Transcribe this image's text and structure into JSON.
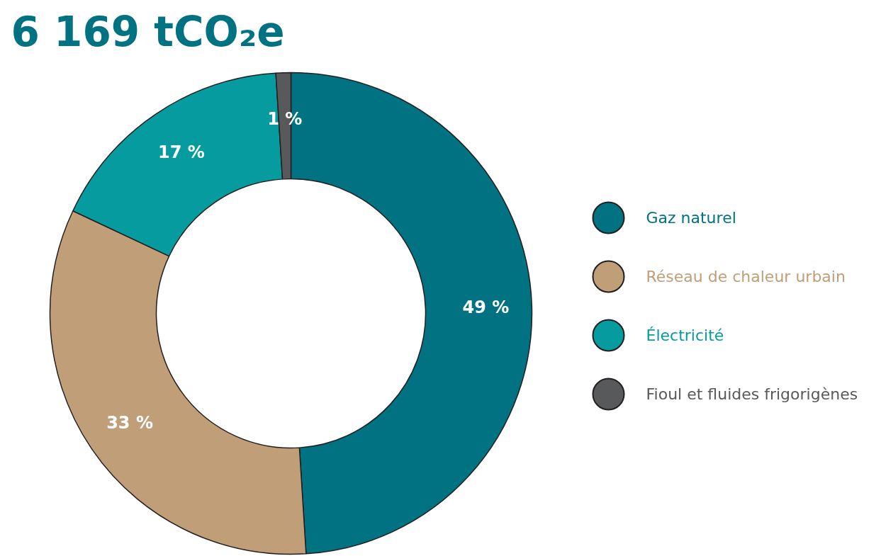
{
  "chart_data": {
    "type": "donut",
    "title": "6 169 tCO₂e",
    "categories": [
      "Gaz naturel",
      "Réseau de chaleur urbain",
      "Électricité",
      "Fioul et fluides frigorigènes"
    ],
    "values": [
      49,
      33,
      17,
      1
    ],
    "colors": [
      "#017282",
      "#c09e78",
      "#069c9f",
      "#58595b"
    ],
    "value_labels": [
      "49 %",
      "33 %",
      "17 %",
      "1 %"
    ],
    "legend": "right"
  }
}
